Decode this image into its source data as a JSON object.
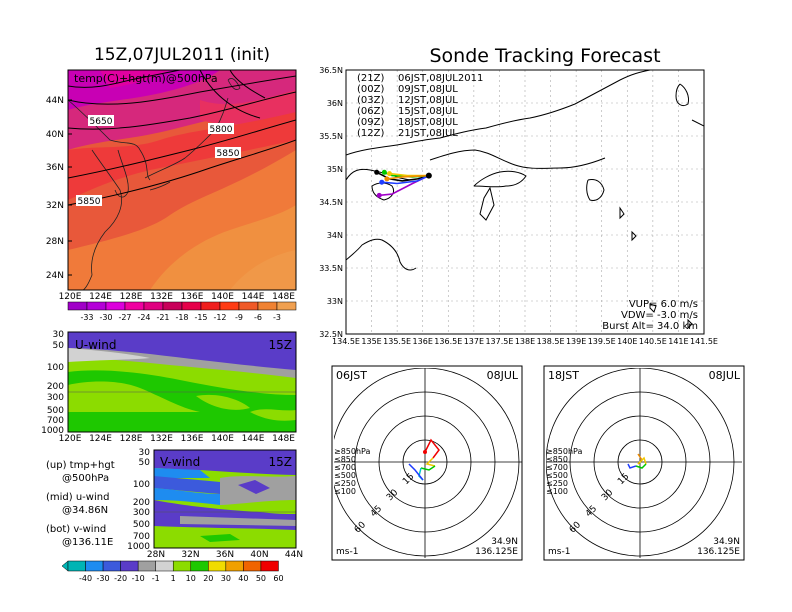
{
  "header": {
    "left_title": "15Z,07JUL2011 (init)",
    "right_title": "Sonde Tracking Forecast"
  },
  "panels": {
    "map500": {
      "label": "temp(C)+hgt(m)@500hPa",
      "contour_labels": [
        "5650",
        "5800",
        "5850",
        "5850"
      ],
      "lat_ticks": [
        "44N",
        "40N",
        "36N",
        "32N",
        "28N",
        "24N"
      ],
      "lon_ticks": [
        "120E",
        "124E",
        "128E",
        "132E",
        "136E",
        "140E",
        "144E",
        "148E"
      ],
      "colorbar_ticks": [
        "-33",
        "-30",
        "-27",
        "-24",
        "-21",
        "-18",
        "-15",
        "-12",
        "-9",
        "-6",
        "-3"
      ],
      "colorbar_colors": [
        "#a000c8",
        "#b400d8",
        "#dc00dc",
        "#f000a0",
        "#e00080",
        "#c8005a",
        "#e6004a",
        "#f01e1e",
        "#ff3c14",
        "#f05a28",
        "#f08232",
        "#f0a050"
      ]
    },
    "uwind": {
      "label": "U-wind",
      "time": "15Z",
      "p_ticks": [
        "30",
        "50",
        "100",
        "200",
        "300",
        "500",
        "700",
        "1000"
      ],
      "lon_ticks": [
        "120E",
        "124E",
        "128E",
        "132E",
        "136E",
        "140E",
        "144E",
        "148E"
      ]
    },
    "vwind": {
      "label": "V-wind",
      "time": "15Z",
      "p_ticks": [
        "30",
        "50",
        "100",
        "200",
        "300",
        "500",
        "700",
        "1000"
      ],
      "lat_ticks": [
        "28N",
        "32N",
        "36N",
        "40N",
        "44N"
      ]
    },
    "notes": {
      "up": "(up) tmp+hgt",
      "up2": "@500hPa",
      "mid": "(mid) u-wind",
      "mid2": "@34.86N",
      "bot": "(bot) v-wind",
      "bot2": "@136.11E"
    },
    "wind_colorbar": {
      "ticks": [
        "-40",
        "-30",
        "-20",
        "-10",
        "-1",
        "1",
        "10",
        "20",
        "30",
        "40",
        "50",
        "60"
      ],
      "colors": [
        "#00b4b4",
        "#1e8cf0",
        "#3c5adc",
        "#5a3cc8",
        "#a0a0a0",
        "#d2d2d2",
        "#8cdc00",
        "#1ec800",
        "#f0dc00",
        "#f0a000",
        "#f06400",
        "#f00000"
      ]
    },
    "track": {
      "legend": [
        {
          "code": "(21Z)",
          "text": "06JST,08JUL2011",
          "color": "#000000"
        },
        {
          "code": "(00Z)",
          "text": "09JST,08JUL",
          "color": "#a000c8"
        },
        {
          "code": "(03Z)",
          "text": "12JST,08JUL",
          "color": "#1e3cff"
        },
        {
          "code": "(06Z)",
          "text": "15JST,08JUL",
          "color": "#00c800"
        },
        {
          "code": "(09Z)",
          "text": "18JST,08JUL",
          "color": "#f0c800"
        },
        {
          "code": "(12Z)",
          "text": "21JST,08JUL",
          "color": "#f08c00"
        }
      ],
      "lat_ticks": [
        "36.5N",
        "36N",
        "35.5N",
        "35N",
        "34.5N",
        "34N",
        "33.5N",
        "33N",
        "32.5N"
      ],
      "lon_ticks": [
        "134.5E",
        "135E",
        "135.5E",
        "136E",
        "136.5E",
        "137E",
        "137.5E",
        "138E",
        "138.5E",
        "139E",
        "139.5E",
        "140E",
        "140.5E",
        "141E",
        "141.5E"
      ],
      "info": [
        "VUP= 6.0 m/s",
        "VDW= -3.0 m/s",
        "Burst Alt= 34.0 km"
      ]
    },
    "hodo_left": {
      "time": "06JST",
      "date": "08JUL",
      "ring_labels": [
        "15",
        "30",
        "45",
        "60"
      ],
      "levels": [
        {
          "label": "≥850hPa",
          "color": "#f00000"
        },
        {
          "label": "≤850",
          "color": "#f08c00"
        },
        {
          "label": "≤700",
          "color": "#f0c800"
        },
        {
          "label": "≤500",
          "color": "#00c800"
        },
        {
          "label": "≤250",
          "color": "#00c8c8"
        },
        {
          "label": "≤100",
          "color": "#1e3cff"
        }
      ],
      "unit": "ms-1",
      "lat": "34.9N",
      "lon": "136.125E"
    },
    "hodo_right": {
      "time": "18JST",
      "date": "08JUL",
      "ring_labels": [
        "15",
        "30",
        "45",
        "60"
      ],
      "levels": [
        {
          "label": "≥850hPa",
          "color": "#f00000"
        },
        {
          "label": "≤850",
          "color": "#f08c00"
        },
        {
          "label": "≤700",
          "color": "#f0c800"
        },
        {
          "label": "≤500",
          "color": "#00c800"
        },
        {
          "label": "≤250",
          "color": "#00c8c8"
        },
        {
          "label": "≤100",
          "color": "#1e3cff"
        }
      ],
      "unit": "ms-1",
      "lat": "34.9N",
      "lon": "136.125E"
    }
  },
  "chart_data": [
    {
      "type": "heatmap",
      "title": "15Z,07JUL2011 (init)",
      "subtitle": "temp(C)+hgt(m)@500hPa",
      "xlim": [
        120,
        150
      ],
      "ylim": [
        22,
        48
      ],
      "contour_levels": [
        5650,
        5800,
        5850
      ]
    },
    {
      "type": "line",
      "title": "Sonde Tracking Forecast",
      "xlim": [
        134.5,
        141.5
      ],
      "ylim": [
        32.5,
        36.5
      ],
      "series": [
        {
          "name": "(21Z) 06JST,08JUL2011",
          "x": [
            136.12,
            135.9,
            135.6,
            135.35,
            135.1
          ],
          "y": [
            34.9,
            34.85,
            34.82,
            34.85,
            34.95
          ]
        },
        {
          "name": "(00Z) 09JST,08JUL",
          "x": [
            136.12,
            135.8,
            135.4,
            135.15
          ],
          "y": [
            34.9,
            34.78,
            34.62,
            34.6
          ]
        },
        {
          "name": "(03Z) 12JST,08JUL",
          "x": [
            136.12,
            135.9,
            135.5,
            135.2
          ],
          "y": [
            34.9,
            34.82,
            34.78,
            34.8
          ]
        },
        {
          "name": "(06Z) 15JST,08JUL",
          "x": [
            136.12,
            135.8,
            135.4,
            135.25
          ],
          "y": [
            34.9,
            34.88,
            34.9,
            34.95
          ]
        },
        {
          "name": "(09Z) 18JST,08JUL",
          "x": [
            136.12,
            135.7,
            135.35
          ],
          "y": [
            34.9,
            34.9,
            34.93
          ]
        },
        {
          "name": "(12Z) 21JST,08JUL",
          "x": [
            136.12,
            135.6,
            135.3
          ],
          "y": [
            34.9,
            34.88,
            34.85
          ]
        }
      ],
      "info": {
        "vup_ms": 6.0,
        "vdw_ms": -3.0,
        "burst_alt_km": 34.0
      }
    }
  ]
}
